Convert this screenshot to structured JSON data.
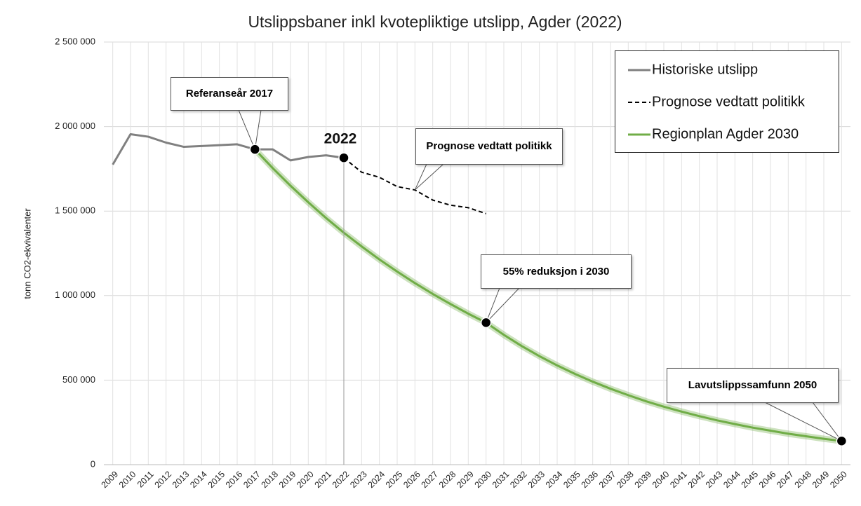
{
  "chart_data": {
    "type": "line",
    "title": "Utslippsbaner inkl kvotepliktige utslipp, Agder (2022)",
    "ylabel": "tonn CO2-ekvivalenter",
    "categories": [
      "2009",
      "2010",
      "2011",
      "2012",
      "2013",
      "2014",
      "2015",
      "2016",
      "2017",
      "2018",
      "2019",
      "2020",
      "2021",
      "2022",
      "2023",
      "2024",
      "2025",
      "2026",
      "2027",
      "2028",
      "2029",
      "2030",
      "2031",
      "2032",
      "2033",
      "2034",
      "2035",
      "2036",
      "2037",
      "2038",
      "2039",
      "2040",
      "2041",
      "2042",
      "2043",
      "2044",
      "2045",
      "2046",
      "2047",
      "2048",
      "2049",
      "2050"
    ],
    "series": [
      {
        "name": "Historiske utslipp",
        "color": "#808080",
        "dash": false,
        "values": [
          1775000,
          1955000,
          1940000,
          1905000,
          1880000,
          1885000,
          1890000,
          1895000,
          1865000,
          1865000,
          1800000,
          1820000,
          1830000,
          1815000,
          null,
          null,
          null,
          null,
          null,
          null,
          null,
          null,
          null,
          null,
          null,
          null,
          null,
          null,
          null,
          null,
          null,
          null,
          null,
          null,
          null,
          null,
          null,
          null,
          null,
          null,
          null,
          null
        ]
      },
      {
        "name": "Prognose vedtatt politikk",
        "color": "#000000",
        "dash": true,
        "values": [
          null,
          null,
          null,
          null,
          null,
          null,
          null,
          null,
          null,
          null,
          null,
          null,
          null,
          1815000,
          1730000,
          1700000,
          1645000,
          1625000,
          1565000,
          1535000,
          1520000,
          1485000,
          null,
          null,
          null,
          null,
          null,
          null,
          null,
          null,
          null,
          null,
          null,
          null,
          null,
          null,
          null,
          null,
          null,
          null,
          null,
          null
        ]
      },
      {
        "name": "Regionplan Agder 2030",
        "color": "#70ad47",
        "dash": false,
        "values": [
          null,
          null,
          null,
          null,
          null,
          null,
          null,
          null,
          1865000,
          1754000,
          1650000,
          1552000,
          1459000,
          1372000,
          1291000,
          1214000,
          1142000,
          1074000,
          1010000,
          950000,
          893000,
          840000,
          768000,
          702000,
          642000,
          587000,
          537000,
          491000,
          449000,
          411000,
          375000,
          343000,
          314000,
          287000,
          262000,
          240000,
          219000,
          201000,
          183000,
          168000,
          153000,
          140000
        ]
      }
    ],
    "ylim": [
      0,
      2500000
    ],
    "yticks": [
      0,
      {
        "value": 500000,
        "label": "500 000"
      },
      {
        "value": 1000000,
        "label": "1 000 000"
      },
      {
        "value": 1500000,
        "label": "1 500 000"
      },
      {
        "value": 2000000,
        "label": "2 000 000"
      },
      {
        "value": 2500000,
        "label": "2 500 000"
      }
    ],
    "grid": true,
    "legend": "top-right",
    "year_label": "2022",
    "annotations": [
      "Referanseår 2017",
      "Prognose vedtatt politikk",
      "55% reduksjon i 2030",
      "Lavutslippssamfunn 2050"
    ]
  }
}
